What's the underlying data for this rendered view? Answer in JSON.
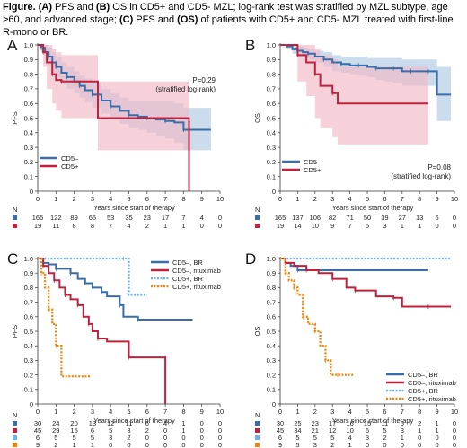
{
  "caption": {
    "part1": "Figure. (A)",
    "part2": " PFS and ",
    "part3": "(B)",
    "part4": " OS in CD5+ and CD5- MZL; log-rank test was stratified by MZL subtype, age >60, and advanced stage; ",
    "part5": "(C)",
    "part6": " PFS and ",
    "part7": "(OS)",
    "part8": " of patients with CD5+ and CD5- MZL treated with first-line R-mono or BR."
  },
  "colors": {
    "blue": "#3a6ea8",
    "red": "#c0213f",
    "lightblue": "#6cb4e6",
    "orange": "#f0840f",
    "blueband": "#b9d0e6",
    "redband": "#f1b8c6"
  },
  "chart_data": [
    {
      "type": "line",
      "panel": "A",
      "ylabel": "PFS",
      "xlabel": "Years since start of therapy",
      "xlim": [
        0,
        10
      ],
      "ylim": [
        0,
        1
      ],
      "xticks": [
        "0",
        "1",
        "2",
        "3",
        "4",
        "5",
        "6",
        "7",
        "8",
        "9",
        "10"
      ],
      "yticks": [
        "0",
        "0.1",
        "0.2",
        "0.3",
        "0.4",
        "0.5",
        "0.6",
        "0.7",
        "0.8",
        "0.9",
        "1.0"
      ],
      "annotation": [
        "P=0.29",
        "(stratified log-rank)"
      ],
      "legend": [
        "CD5–",
        "CD5+"
      ],
      "series": [
        {
          "name": "CD5–",
          "color": "blue",
          "x": [
            0,
            0.2,
            0.4,
            0.6,
            0.8,
            1,
            1.3,
            1.6,
            2,
            2.3,
            2.6,
            3,
            3.5,
            4,
            4.5,
            5,
            5.5,
            6,
            6.5,
            7,
            7.5,
            8,
            8.5,
            9.5
          ],
          "y": [
            1,
            0.98,
            0.95,
            0.92,
            0.88,
            0.85,
            0.81,
            0.78,
            0.75,
            0.72,
            0.69,
            0.66,
            0.62,
            0.58,
            0.55,
            0.52,
            0.51,
            0.5,
            0.49,
            0.48,
            0.47,
            0.42,
            0.42,
            0.42
          ],
          "ci_upper": [
            1,
            1,
            1,
            0.98,
            0.95,
            0.92,
            0.88,
            0.85,
            0.82,
            0.79,
            0.77,
            0.74,
            0.7,
            0.67,
            0.64,
            0.62,
            0.62,
            0.62,
            0.62,
            0.62,
            0.6,
            0.57,
            0.57,
            0.57
          ],
          "ci_lower": [
            1,
            0.95,
            0.9,
            0.86,
            0.81,
            0.77,
            0.73,
            0.7,
            0.67,
            0.64,
            0.61,
            0.57,
            0.53,
            0.49,
            0.46,
            0.43,
            0.42,
            0.4,
            0.38,
            0.36,
            0.33,
            0.28,
            0.28,
            0.28
          ]
        },
        {
          "name": "CD5+",
          "color": "red",
          "x": [
            0,
            0.3,
            0.5,
            0.8,
            1,
            1.3,
            3.3,
            8.3,
            8.3
          ],
          "y": [
            1,
            0.95,
            0.88,
            0.8,
            0.76,
            0.75,
            0.5,
            0.5,
            0
          ],
          "ci_upper": [
            1,
            1,
            1,
            0.97,
            0.95,
            0.93,
            0.75,
            0.75,
            0.75
          ],
          "ci_lower": [
            1,
            0.85,
            0.7,
            0.6,
            0.55,
            0.5,
            0.28,
            0.28,
            0.28
          ]
        }
      ],
      "risk_table": {
        "header": "N",
        "rows": [
          {
            "color": "blue",
            "values": [
              "165",
              "122",
              "89",
              "65",
              "53",
              "35",
              "23",
              "17",
              "7",
              "4",
              "0"
            ]
          },
          {
            "color": "red",
            "values": [
              "19",
              "11",
              "8",
              "8",
              "7",
              "4",
              "2",
              "1",
              "1",
              "0",
              "0"
            ]
          }
        ]
      }
    },
    {
      "type": "line",
      "panel": "B",
      "ylabel": "OS",
      "xlabel": "Years since start of therapy",
      "xlim": [
        0,
        10
      ],
      "ylim": [
        0,
        1
      ],
      "xticks": [
        "0",
        "1",
        "2",
        "3",
        "4",
        "5",
        "6",
        "7",
        "8",
        "9",
        "10"
      ],
      "yticks": [
        "0",
        "0.1",
        "0.2",
        "0.3",
        "0.4",
        "0.5",
        "0.6",
        "0.7",
        "0.8",
        "0.9",
        "1.0"
      ],
      "annotation": [
        "P=0.08",
        "(stratified log-rank)"
      ],
      "legend": [
        "CD5–",
        "CD5+"
      ],
      "series": [
        {
          "name": "CD5–",
          "color": "blue",
          "x": [
            0,
            0.4,
            0.7,
            1,
            1.3,
            1.6,
            2,
            2.5,
            3,
            3.5,
            4,
            4.5,
            5,
            5.5,
            6,
            6.5,
            7,
            7.5,
            8,
            8.5,
            9,
            9.8
          ],
          "y": [
            1,
            0.99,
            0.97,
            0.96,
            0.95,
            0.94,
            0.92,
            0.9,
            0.88,
            0.87,
            0.86,
            0.86,
            0.85,
            0.84,
            0.84,
            0.84,
            0.82,
            0.82,
            0.82,
            0.82,
            0.66,
            0.66
          ],
          "ci_upper": [
            1,
            1,
            1,
            0.99,
            0.98,
            0.97,
            0.96,
            0.95,
            0.93,
            0.92,
            0.92,
            0.92,
            0.91,
            0.91,
            0.91,
            0.91,
            0.9,
            0.9,
            0.9,
            0.9,
            0.85,
            0.85
          ],
          "ci_lower": [
            1,
            0.97,
            0.94,
            0.92,
            0.91,
            0.9,
            0.88,
            0.85,
            0.82,
            0.81,
            0.8,
            0.79,
            0.78,
            0.76,
            0.75,
            0.74,
            0.72,
            0.72,
            0.72,
            0.72,
            0.48,
            0.48
          ]
        },
        {
          "name": "CD5+",
          "color": "red",
          "x": [
            0,
            1,
            1.5,
            2,
            2.3,
            3,
            3.3,
            8.5
          ],
          "y": [
            1,
            0.93,
            0.88,
            0.8,
            0.72,
            0.67,
            0.6,
            0.6
          ],
          "ci_upper": [
            1,
            1,
            1,
            0.97,
            0.93,
            0.9,
            0.85,
            0.85
          ],
          "ci_lower": [
            1,
            0.75,
            0.65,
            0.5,
            0.43,
            0.37,
            0.32,
            0.32
          ]
        }
      ],
      "risk_table": {
        "header": "N",
        "rows": [
          {
            "color": "blue",
            "values": [
              "165",
              "137",
              "106",
              "82",
              "71",
              "50",
              "39",
              "27",
              "13",
              "6",
              "0"
            ]
          },
          {
            "color": "red",
            "values": [
              "19",
              "14",
              "10",
              "9",
              "7",
              "5",
              "3",
              "1",
              "1",
              "0",
              "0"
            ]
          }
        ]
      }
    },
    {
      "type": "line",
      "panel": "C",
      "ylabel": "PFS",
      "xlabel": "Years since start of therapy",
      "xlim": [
        0,
        10
      ],
      "ylim": [
        0,
        1
      ],
      "xticks": [
        "0",
        "1",
        "2",
        "3",
        "4",
        "5",
        "6",
        "7",
        "8",
        "9",
        "10"
      ],
      "yticks": [
        "0",
        "0.1",
        "0.2",
        "0.3",
        "0.4",
        "0.5",
        "0.6",
        "0.7",
        "0.8",
        "0.9",
        "1.0"
      ],
      "legend": [
        "CD5–, BR",
        "CD5–, rituximab",
        "CD5+, BR",
        "CD5+, rituximab"
      ],
      "series": [
        {
          "name": "CD5–, BR",
          "color": "blue",
          "dash": false,
          "x": [
            0,
            0.3,
            0.6,
            1,
            1.4,
            1.8,
            2.2,
            2.6,
            3,
            3.5,
            3.8,
            4.5,
            4.7,
            5.5,
            6,
            8.5
          ],
          "y": [
            1,
            0.97,
            0.96,
            0.93,
            0.93,
            0.9,
            0.86,
            0.83,
            0.8,
            0.77,
            0.74,
            0.68,
            0.6,
            0.58,
            0.58,
            0.58
          ]
        },
        {
          "name": "CD5–, rituximab",
          "color": "red",
          "dash": false,
          "x": [
            0,
            0.3,
            0.6,
            0.9,
            1.2,
            1.5,
            1.8,
            2.2,
            2.5,
            2.8,
            3,
            3.3,
            3.8,
            5,
            5.5,
            7,
            7
          ],
          "y": [
            1,
            0.95,
            0.9,
            0.85,
            0.8,
            0.75,
            0.72,
            0.68,
            0.6,
            0.55,
            0.5,
            0.45,
            0.43,
            0.32,
            0.32,
            0.32,
            0
          ]
        },
        {
          "name": "CD5+, BR",
          "color": "lightblue",
          "dash": true,
          "x": [
            0,
            4.7,
            5,
            6
          ],
          "y": [
            1,
            1,
            0.75,
            0.75
          ]
        },
        {
          "name": "CD5+, rituximab",
          "color": "orange",
          "dash": true,
          "x": [
            0,
            0.2,
            0.4,
            0.6,
            0.8,
            1,
            1.3,
            2.9
          ],
          "y": [
            1,
            0.9,
            0.8,
            0.65,
            0.55,
            0.4,
            0.19,
            0.19
          ]
        }
      ],
      "risk_table": {
        "header": "N",
        "rows": [
          {
            "color": "blue",
            "values": [
              "30",
              "24",
              "20",
              "13",
              "12",
              "11",
              "6",
              "4",
              "1",
              "0",
              "0"
            ]
          },
          {
            "color": "red",
            "values": [
              "45",
              "29",
              "15",
              "6",
              "5",
              "3",
              "2",
              "0",
              "1",
              "0",
              "0"
            ]
          },
          {
            "color": "lightblue",
            "values": [
              "6",
              "5",
              "5",
              "5",
              "3",
              "2",
              "0",
              "0",
              "0",
              "0",
              "0"
            ]
          },
          {
            "color": "orange",
            "values": [
              "9",
              "2",
              "1",
              "1",
              "0",
              "0",
              "0",
              "0",
              "0",
              "0",
              "0"
            ]
          }
        ]
      }
    },
    {
      "type": "line",
      "panel": "D",
      "ylabel": "OS",
      "xlabel": "Years since start of therapy",
      "xlim": [
        0,
        10
      ],
      "ylim": [
        0,
        1
      ],
      "xticks": [
        "0",
        "1",
        "2",
        "3",
        "4",
        "5",
        "6",
        "7",
        "8",
        "9",
        "10"
      ],
      "yticks": [
        "0",
        "0.1",
        "0.2",
        "0.3",
        "0.4",
        "0.5",
        "0.6",
        "0.7",
        "0.8",
        "0.9",
        "1.0"
      ],
      "legend": [
        "CD5–, BR",
        "CD5–, rituximab",
        "CD5+, BR",
        "CD5+, rituximab"
      ],
      "series": [
        {
          "name": "CD5–, BR",
          "color": "blue",
          "dash": false,
          "x": [
            0,
            0.3,
            0.6,
            1,
            8.5
          ],
          "y": [
            1,
            0.97,
            0.95,
            0.92,
            0.92
          ]
        },
        {
          "name": "CD5–, rituximab",
          "color": "red",
          "dash": false,
          "x": [
            0,
            0.3,
            0.8,
            1.5,
            2.2,
            3,
            3.8,
            4.3,
            5.5,
            6.5,
            7,
            8.5,
            9.8
          ],
          "y": [
            1,
            0.97,
            0.95,
            0.92,
            0.9,
            0.86,
            0.8,
            0.78,
            0.74,
            0.73,
            0.67,
            0.67,
            0.67
          ]
        },
        {
          "name": "CD5+, BR",
          "color": "lightblue",
          "dash": true,
          "x": [
            0,
            9.8
          ],
          "y": [
            1,
            1
          ]
        },
        {
          "name": "CD5+, rituximab",
          "color": "orange",
          "dash": true,
          "x": [
            0,
            0.3,
            0.5,
            0.8,
            1,
            1.3,
            1.6,
            2,
            2.3,
            2.6,
            2.9,
            3.3,
            3.6,
            4.2
          ],
          "y": [
            1,
            0.9,
            0.85,
            0.8,
            0.75,
            0.6,
            0.55,
            0.5,
            0.4,
            0.3,
            0.2,
            0.2,
            0.2,
            0.2
          ]
        }
      ],
      "risk_table": {
        "header": "N",
        "rows": [
          {
            "color": "blue",
            "values": [
              "30",
              "25",
              "23",
              "17",
              "16",
              "15",
              "11",
              "6",
              "2",
              "1",
              "0"
            ]
          },
          {
            "color": "red",
            "values": [
              "45",
              "34",
              "21",
              "12",
              "10",
              "6",
              "5",
              "3",
              "1",
              "1",
              "0"
            ]
          },
          {
            "color": "lightblue",
            "values": [
              "6",
              "5",
              "5",
              "5",
              "4",
              "3",
              "2",
              "1",
              "0",
              "0",
              "0"
            ]
          },
          {
            "color": "orange",
            "values": [
              "9",
              "5",
              "3",
              "2",
              "1",
              "0",
              "0",
              "0",
              "0",
              "0",
              "0"
            ]
          }
        ]
      }
    }
  ]
}
